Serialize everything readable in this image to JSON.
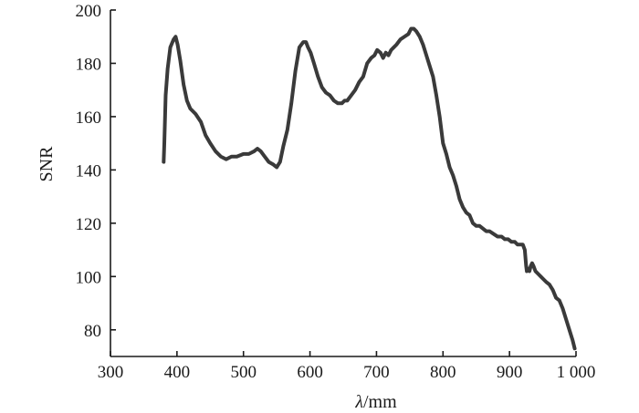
{
  "chart_data": {
    "type": "line",
    "title": "",
    "xlabel_symbol": "λ",
    "xlabel_unit": "/mm",
    "ylabel": "SNR",
    "xlim": [
      300,
      1000
    ],
    "ylim": [
      70,
      200
    ],
    "x_ticks": [
      300,
      400,
      500,
      600,
      700,
      800,
      900,
      1000
    ],
    "x_tick_labels": [
      "300",
      "400",
      "500",
      "600",
      "700",
      "800",
      "900",
      "1 000"
    ],
    "y_ticks": [
      80,
      100,
      120,
      140,
      160,
      180,
      200
    ],
    "y_tick_labels": [
      "80",
      "100",
      "120",
      "140",
      "160",
      "180",
      "200"
    ],
    "grid": false,
    "line_color": "#3a3a3a",
    "series": [
      {
        "x": [
          380,
          381,
          383,
          386,
          390,
          395,
          398,
          401,
          405,
          410,
          415,
          420,
          428,
          436,
          443,
          450,
          458,
          466,
          474,
          482,
          490,
          500,
          508,
          516,
          521,
          526,
          532,
          538,
          545,
          550,
          555,
          560,
          566,
          572,
          578,
          584,
          590,
          594,
          597,
          601,
          606,
          612,
          618,
          624,
          630,
          636,
          642,
          648,
          652,
          656,
          662,
          668,
          674,
          680,
          686,
          692,
          697,
          701,
          706,
          710,
          714,
          718,
          722,
          726,
          730,
          736,
          742,
          748,
          752,
          756,
          760,
          765,
          770,
          775,
          780,
          785,
          790,
          795,
          800,
          805,
          810,
          815,
          820,
          825,
          830,
          835,
          840,
          845,
          850,
          855,
          860,
          865,
          870,
          876,
          882,
          888,
          893,
          898,
          903,
          908,
          912,
          916,
          920,
          923,
          925,
          926,
          928,
          930,
          932,
          934,
          936,
          939,
          943,
          947,
          951,
          955,
          960,
          965,
          970,
          975,
          980,
          985,
          990,
          995,
          998
        ],
        "y": [
          143,
          150,
          168,
          178,
          186,
          189,
          190,
          187,
          181,
          172,
          166,
          163,
          161,
          158,
          153,
          150,
          147,
          145,
          144,
          145,
          145,
          146,
          146,
          147,
          148,
          147,
          145,
          143,
          142,
          141,
          143,
          149,
          155,
          165,
          177,
          186,
          188,
          188,
          186,
          184,
          180,
          175,
          171,
          169,
          168,
          166,
          165,
          165,
          166,
          166,
          168,
          170,
          173,
          175,
          180,
          182,
          183,
          185,
          184,
          182,
          184,
          183,
          185,
          186,
          187,
          189,
          190,
          191,
          193,
          193,
          192,
          190,
          187,
          183,
          179,
          175,
          168,
          160,
          150,
          146,
          141,
          138,
          134,
          129,
          126,
          124,
          123,
          120,
          119,
          119,
          118,
          117,
          117,
          116,
          115,
          115,
          114,
          114,
          113,
          113,
          112,
          112,
          112,
          110,
          104,
          102,
          103,
          102,
          104,
          105,
          104,
          102,
          101,
          100,
          99,
          98,
          97,
          95,
          92,
          91,
          88,
          84,
          80,
          76,
          73
        ]
      }
    ]
  }
}
